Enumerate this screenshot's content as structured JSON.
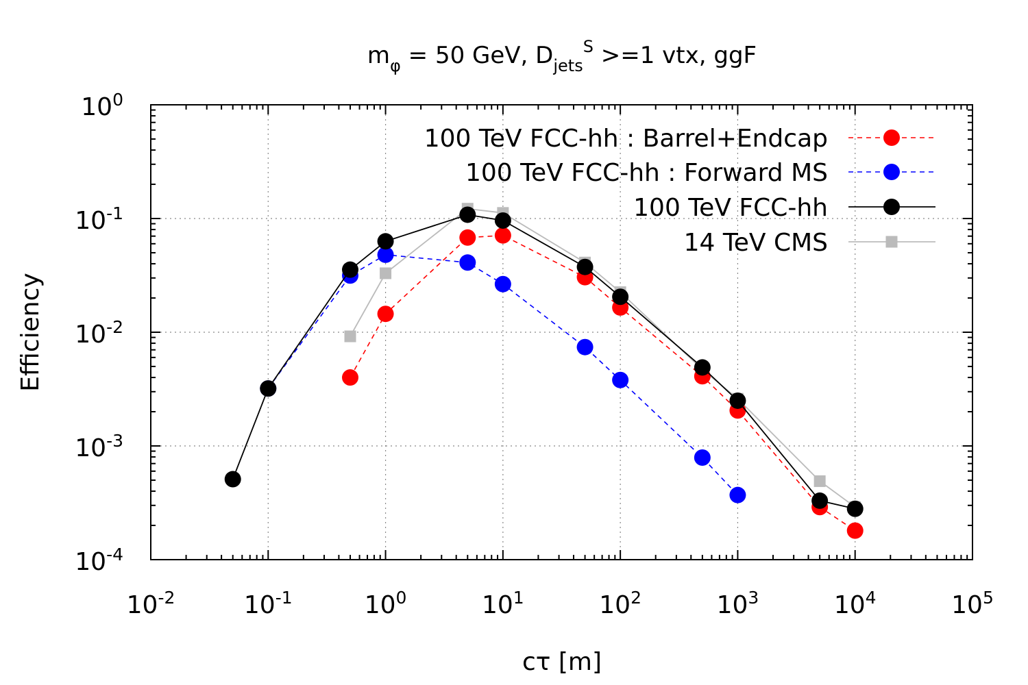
{
  "chart_data": {
    "type": "scatter",
    "title": {
      "main": "m",
      "main_sub": "φ",
      "mid": " = 50 GeV, D",
      "mid_sub": "jets",
      "mid_sup": "S",
      "tail": " >=1 vtx, ggF"
    },
    "xlabel": "cτ [m]",
    "ylabel": "Efficiency",
    "x_scale": "log",
    "y_scale": "log",
    "xlim": [
      0.01,
      100000
    ],
    "ylim": [
      0.0001,
      1
    ],
    "grid": true,
    "legend_position": "top-right",
    "x_ticks": [
      {
        "value": 0.01,
        "base": "10",
        "exp": "-2"
      },
      {
        "value": 0.1,
        "base": "10",
        "exp": "-1"
      },
      {
        "value": 1,
        "base": "10",
        "exp": "0"
      },
      {
        "value": 10,
        "base": "10",
        "exp": "1"
      },
      {
        "value": 100,
        "base": "10",
        "exp": "2"
      },
      {
        "value": 1000,
        "base": "10",
        "exp": "3"
      },
      {
        "value": 10000,
        "base": "10",
        "exp": "4"
      },
      {
        "value": 100000,
        "base": "10",
        "exp": "5"
      }
    ],
    "y_ticks": [
      {
        "value": 1,
        "base": "10",
        "exp": "0"
      },
      {
        "value": 0.1,
        "base": "10",
        "exp": "-1"
      },
      {
        "value": 0.01,
        "base": "10",
        "exp": "-2"
      },
      {
        "value": 0.001,
        "base": "10",
        "exp": "-3"
      },
      {
        "value": 0.0001,
        "base": "10",
        "exp": "-4"
      }
    ],
    "series": [
      {
        "name": "100 TeV FCC-hh : Barrel+Endcap",
        "color": "#ff0000",
        "line": "dashed",
        "marker": "circle",
        "points": [
          [
            0.5,
            0.004
          ],
          [
            1,
            0.0145
          ],
          [
            5,
            0.068
          ],
          [
            10,
            0.071
          ],
          [
            50,
            0.0305
          ],
          [
            100,
            0.0165
          ],
          [
            500,
            0.0041
          ],
          [
            1000,
            0.00205
          ],
          [
            5000,
            0.00029
          ],
          [
            10000,
            0.00018
          ]
        ]
      },
      {
        "name": "100 TeV FCC-hh : Forward MS",
        "color": "#0000ff",
        "line": "dashed",
        "marker": "circle",
        "points": [
          [
            0.1,
            0.0032
          ],
          [
            0.5,
            0.0315
          ],
          [
            1,
            0.048
          ],
          [
            5,
            0.041
          ],
          [
            10,
            0.0265
          ],
          [
            50,
            0.0074
          ],
          [
            100,
            0.0038
          ],
          [
            500,
            0.00079
          ],
          [
            1000,
            0.00037
          ]
        ]
      },
      {
        "name": "100 TeV FCC-hh",
        "color": "#000000",
        "line": "solid",
        "marker": "circle",
        "points": [
          [
            0.05,
            0.00051
          ],
          [
            0.1,
            0.0032
          ],
          [
            0.5,
            0.0355
          ],
          [
            1,
            0.063
          ],
          [
            5,
            0.108
          ],
          [
            10,
            0.096
          ],
          [
            50,
            0.0375
          ],
          [
            100,
            0.0205
          ],
          [
            500,
            0.0049
          ],
          [
            1000,
            0.0025
          ],
          [
            5000,
            0.00033
          ],
          [
            10000,
            0.00028
          ]
        ]
      },
      {
        "name": "14 TeV CMS",
        "color": "#bbbbbb",
        "line": "solid",
        "marker": "square",
        "points": [
          [
            0.5,
            0.0092
          ],
          [
            1,
            0.033
          ],
          [
            5,
            0.122
          ],
          [
            10,
            0.112
          ],
          [
            50,
            0.041
          ],
          [
            100,
            0.0225
          ],
          [
            500,
            0.0047
          ],
          [
            1000,
            0.0026
          ],
          [
            5000,
            0.00049
          ],
          [
            10000,
            0.00029
          ]
        ]
      }
    ]
  }
}
